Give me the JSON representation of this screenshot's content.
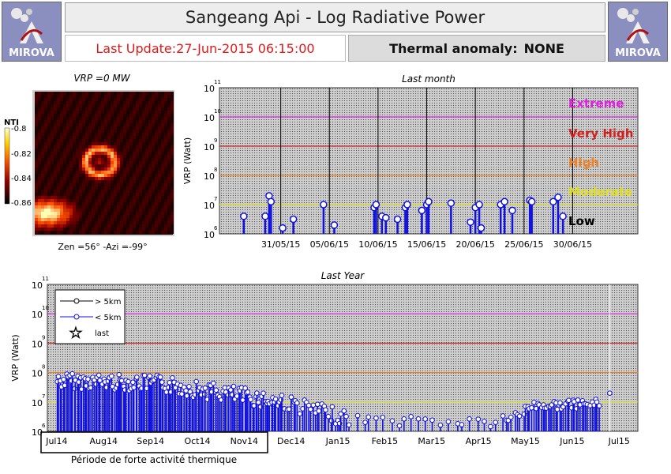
{
  "header": {
    "title": "Sangeang Api - Log Radiative Power",
    "last_update": "Last Update:27-Jun-2015 06:15:00",
    "thermal_label": "Thermal anomaly:",
    "thermal_value": "NONE",
    "logo_text": "MIROVA"
  },
  "thermal_image": {
    "title": "VRP =0 MW",
    "nti_label": "NTI",
    "colorbar_ticks": [
      "-0.8",
      "-0.82",
      "-0.84",
      "-0.86"
    ],
    "caption": "Zen =56° -Azi =-99°"
  },
  "levels": [
    "Extreme",
    "Very High",
    "High",
    "Moderate",
    "Low"
  ],
  "colors": {
    "extreme": "#e020e0",
    "very_high": "#d02020",
    "high": "#f08020",
    "moderate": "#e0e020",
    "low": "#000000",
    "series": "#1010e0"
  },
  "chart_data": [
    {
      "type": "scatter",
      "title": "Last month",
      "ylabel": "VRP (Watt)",
      "yscale": "log",
      "ylim": [
        6,
        11
      ],
      "y_ticks": [
        {
          "base": "10",
          "exp": "6"
        },
        {
          "base": "10",
          "exp": "7"
        },
        {
          "base": "10",
          "exp": "8"
        },
        {
          "base": "10",
          "exp": "9"
        },
        {
          "base": "10",
          "exp": "10"
        },
        {
          "base": "10",
          "exp": "11"
        }
      ],
      "x_ticks": [
        "31/05/15",
        "05/06/15",
        "10/06/15",
        "15/06/15",
        "20/06/15",
        "25/06/15",
        "30/06/15"
      ],
      "thresholds_log10": [
        10.0,
        9.0,
        8.0,
        7.0
      ],
      "series": [
        {
          "name": "< 5km",
          "points": [
            {
              "d": -3.8,
              "v": 6.6
            },
            {
              "d": -1.6,
              "v": 6.6
            },
            {
              "d": -1.2,
              "v": 7.3
            },
            {
              "d": -1.0,
              "v": 7.1
            },
            {
              "d": 0.2,
              "v": 6.2
            },
            {
              "d": 1.3,
              "v": 6.5
            },
            {
              "d": 4.4,
              "v": 7.0
            },
            {
              "d": 5.5,
              "v": 6.3
            },
            {
              "d": 9.6,
              "v": 6.9
            },
            {
              "d": 9.8,
              "v": 7.0
            },
            {
              "d": 10.4,
              "v": 6.6
            },
            {
              "d": 10.8,
              "v": 6.55
            },
            {
              "d": 12.0,
              "v": 6.5
            },
            {
              "d": 12.8,
              "v": 6.9
            },
            {
              "d": 13.0,
              "v": 7.0
            },
            {
              "d": 14.5,
              "v": 6.8
            },
            {
              "d": 15.0,
              "v": 7.0
            },
            {
              "d": 15.2,
              "v": 7.1
            },
            {
              "d": 17.5,
              "v": 7.05
            },
            {
              "d": 19.5,
              "v": 6.4
            },
            {
              "d": 20.0,
              "v": 6.9
            },
            {
              "d": 20.4,
              "v": 7.0
            },
            {
              "d": 20.6,
              "v": 6.2
            },
            {
              "d": 22.6,
              "v": 7.0
            },
            {
              "d": 23.0,
              "v": 7.1
            },
            {
              "d": 23.8,
              "v": 6.8
            },
            {
              "d": 25.6,
              "v": 7.15
            },
            {
              "d": 25.8,
              "v": 7.1
            },
            {
              "d": 28.0,
              "v": 7.1
            },
            {
              "d": 28.5,
              "v": 7.25
            },
            {
              "d": 29.0,
              "v": 6.6
            }
          ]
        }
      ]
    },
    {
      "type": "scatter",
      "title": "Last Year",
      "ylabel": "VRP (Watt)",
      "yscale": "log",
      "ylim": [
        6,
        11
      ],
      "y_ticks": [
        {
          "base": "10",
          "exp": "6"
        },
        {
          "base": "10",
          "exp": "7"
        },
        {
          "base": "10",
          "exp": "8"
        },
        {
          "base": "10",
          "exp": "9"
        },
        {
          "base": "10",
          "exp": "10"
        },
        {
          "base": "10",
          "exp": "11"
        }
      ],
      "x_ticks": [
        "Jul14",
        "Aug14",
        "Sep14",
        "Oct14",
        "Nov14",
        "Dec14",
        "Jan15",
        "Feb15",
        "Mar15",
        "Apr15",
        "May15",
        "Jun15",
        "Jul15"
      ],
      "thresholds_log10": [
        10.0,
        9.0,
        8.0,
        7.0
      ],
      "legend": [
        {
          "label": "> 5km",
          "marker": "circle"
        },
        {
          "label": "< 5km",
          "marker": "circle"
        },
        {
          "label": "last",
          "marker": "star"
        }
      ],
      "annotation": "Période de forte activité thermique",
      "series": [
        {
          "name": "< 5km",
          "segments": [
            {
              "from_month": 0.0,
              "to_month": 2.3,
              "start_log": 8.0,
              "end_log": 7.9,
              "count": 70,
              "spread": 0.55
            },
            {
              "from_month": 2.3,
              "to_month": 4.8,
              "start_log": 7.9,
              "end_log": 7.3,
              "count": 75,
              "spread": 0.6
            },
            {
              "from_month": 4.8,
              "to_month": 6.2,
              "start_log": 7.3,
              "end_log": 6.7,
              "count": 30,
              "spread": 0.55
            },
            {
              "from_month": 6.2,
              "to_month": 9.5,
              "start_log": 6.6,
              "end_log": 6.5,
              "count": 22,
              "spread": 0.4
            },
            {
              "from_month": 9.5,
              "to_month": 10.0,
              "start_log": 6.6,
              "end_log": 6.7,
              "count": 8,
              "spread": 0.35
            },
            {
              "from_month": 10.0,
              "to_month": 11.6,
              "start_log": 7.0,
              "end_log": 7.1,
              "count": 40,
              "spread": 0.3
            }
          ],
          "last": {
            "month": 11.8,
            "v": 7.3
          }
        }
      ]
    }
  ]
}
